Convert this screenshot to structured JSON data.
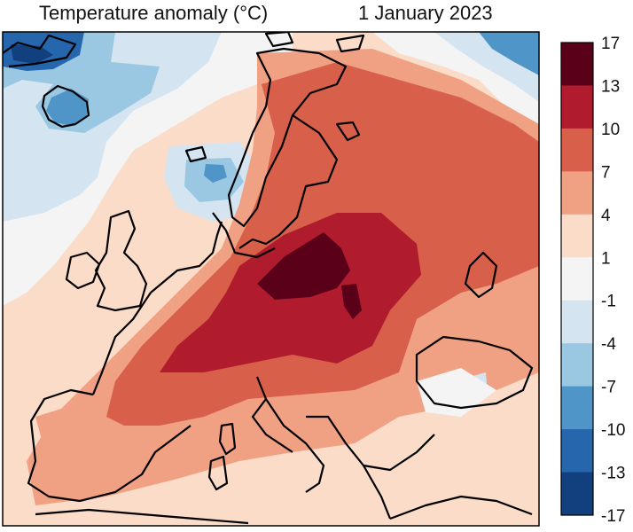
{
  "header": {
    "title": "Temperature anomaly (°C)",
    "date": "1 January 2023"
  },
  "colorbar": {
    "levels": [
      {
        "label": "17",
        "color": "#5b0019"
      },
      {
        "label": "13",
        "color": "#b11b2e"
      },
      {
        "label": "10",
        "color": "#d8604b"
      },
      {
        "label": "7",
        "color": "#f1a183"
      },
      {
        "label": "4",
        "color": "#fbdcc8"
      },
      {
        "label": "1",
        "color": "#f4f4f4"
      },
      {
        "label": "-1",
        "color": "#d4e4f1"
      },
      {
        "label": "-4",
        "color": "#9ac7e2"
      },
      {
        "label": "-7",
        "color": "#4f95c7"
      },
      {
        "label": "-10",
        "color": "#2566ad"
      },
      {
        "label": "-13",
        "color": "#123f7d"
      },
      {
        "label": "-17",
        "color": ""
      }
    ]
  },
  "map": {
    "region": "Europe",
    "variable": "temperature anomaly",
    "units": "°C",
    "palette": {
      "very_hot": "#5b0019",
      "hot": "#b11b2e",
      "warm": "#d8604b",
      "mild_warm": "#f1a183",
      "slight_warm": "#fbdcc8",
      "neutral": "#f4f4f4",
      "slight_cold": "#d4e4f1",
      "cold": "#9ac7e2",
      "colder": "#4f95c7",
      "coldest": "#2566ad",
      "coastline": "#000000"
    }
  }
}
